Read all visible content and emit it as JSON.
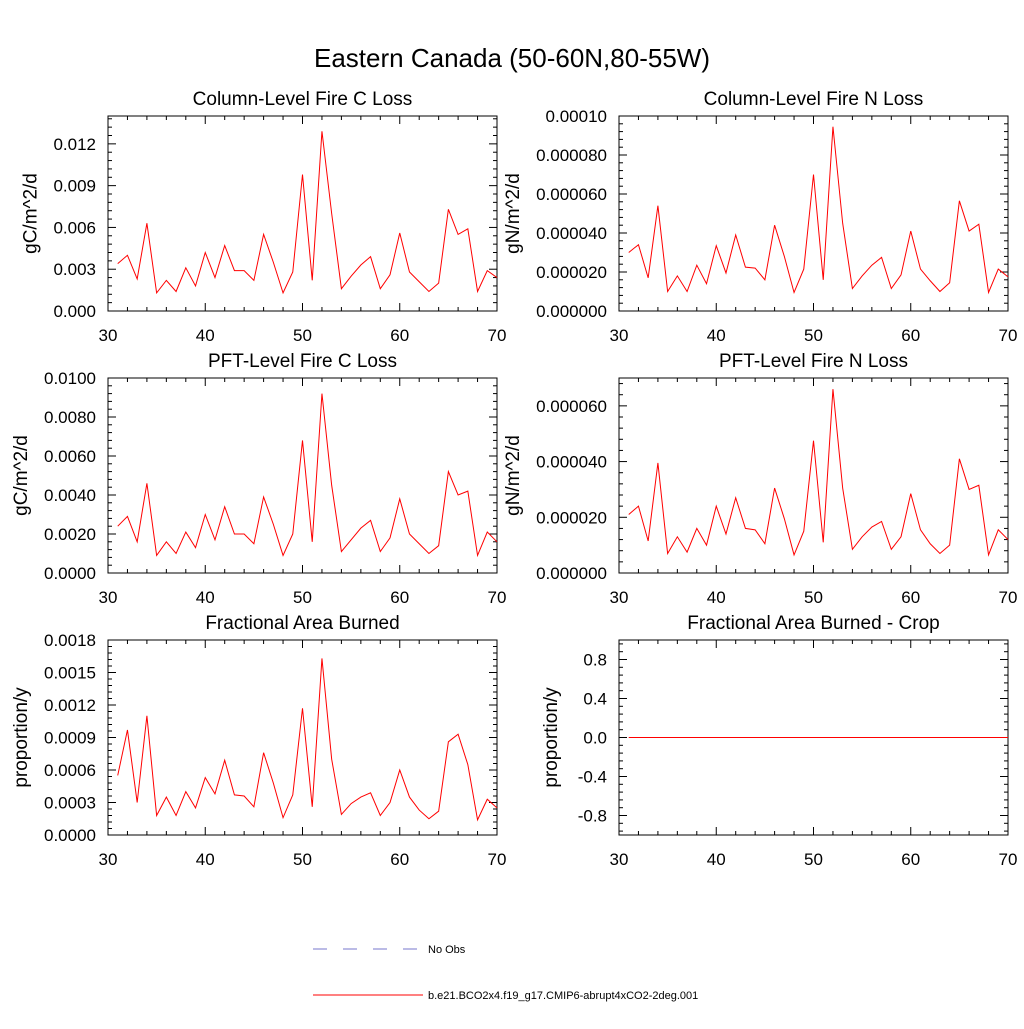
{
  "figure": {
    "title": "Eastern Canada (50-60N,80-55W)"
  },
  "legend": {
    "placement": "bottom-center",
    "items": [
      {
        "label": "No Obs",
        "color": "#7777cc",
        "style": "dashed"
      },
      {
        "label": "b.e21.BCO2x4.f19_g17.CMIP6-abrupt4xCO2-2deg.001",
        "color": "#ff0000",
        "style": "solid"
      }
    ]
  },
  "chart_data": [
    {
      "type": "line",
      "title": "Column-Level Fire C Loss",
      "xlabel": "",
      "ylabel": "gC/m^2/d",
      "xlim": [
        30,
        70
      ],
      "ylim": [
        0,
        0.014
      ],
      "xticks": [
        "30",
        "40",
        "50",
        "60",
        "70"
      ],
      "yticks": [
        "0.000",
        "0.003",
        "0.006",
        "0.009",
        "0.012"
      ],
      "series": [
        {
          "name": "b.e21.BCO2x4.f19_g17.CMIP6-abrupt4xCO2-2deg.001",
          "color": "#ff0000",
          "x": [
            31,
            32,
            33,
            34,
            35,
            36,
            37,
            38,
            39,
            40,
            41,
            42,
            43,
            44,
            45,
            46,
            47,
            48,
            49,
            50,
            51,
            52,
            53,
            54,
            55,
            56,
            57,
            58,
            59,
            60,
            61,
            62,
            63,
            64,
            65,
            66,
            67,
            68,
            69,
            70
          ],
          "values": [
            0.0034,
            0.004,
            0.0023,
            0.0063,
            0.0013,
            0.0022,
            0.0014,
            0.0031,
            0.0018,
            0.0042,
            0.0024,
            0.0047,
            0.0029,
            0.0029,
            0.0022,
            0.0055,
            0.0035,
            0.0013,
            0.0028,
            0.0098,
            0.0022,
            0.0129,
            0.007,
            0.0016,
            0.0025,
            0.0033,
            0.0039,
            0.0016,
            0.0026,
            0.0056,
            0.0028,
            0.0021,
            0.0014,
            0.002,
            0.0073,
            0.0055,
            0.0059,
            0.0014,
            0.0029,
            0.0024
          ]
        }
      ]
    },
    {
      "type": "line",
      "title": "Column-Level Fire N Loss",
      "xlabel": "",
      "ylabel": "gN/m^2/d",
      "xlim": [
        30,
        70
      ],
      "ylim": [
        0,
        0.0001
      ],
      "xticks": [
        "30",
        "40",
        "50",
        "60",
        "70"
      ],
      "yticks": [
        "0.000000",
        "0.000020",
        "0.000040",
        "0.000060",
        "0.000080",
        "0.00010"
      ],
      "series": [
        {
          "name": "b.e21.BCO2x4.f19_g17.CMIP6-abrupt4xCO2-2deg.001",
          "color": "#ff0000",
          "x": [
            31,
            32,
            33,
            34,
            35,
            36,
            37,
            38,
            39,
            40,
            41,
            42,
            43,
            44,
            45,
            46,
            47,
            48,
            49,
            50,
            51,
            52,
            53,
            54,
            55,
            56,
            57,
            58,
            59,
            60,
            61,
            62,
            63,
            64,
            65,
            66,
            67,
            68,
            69,
            70
          ],
          "values": [
            3e-05,
            3.4e-05,
            1.7e-05,
            5.4e-05,
            1e-05,
            1.8e-05,
            1e-05,
            2.35e-05,
            1.4e-05,
            3.35e-05,
            1.95e-05,
            3.9e-05,
            2.25e-05,
            2.2e-05,
            1.6e-05,
            4.4e-05,
            2.8e-05,
            9.5e-06,
            2.15e-05,
            7e-05,
            1.6e-05,
            9.45e-05,
            4.5e-05,
            1.15e-05,
            1.8e-05,
            2.35e-05,
            2.75e-05,
            1.15e-05,
            1.85e-05,
            4.1e-05,
            2.15e-05,
            1.55e-05,
            1e-05,
            1.45e-05,
            5.65e-05,
            4.1e-05,
            4.45e-05,
            9.5e-06,
            2.15e-05,
            1.75e-05
          ]
        }
      ]
    },
    {
      "type": "line",
      "title": "PFT-Level Fire C Loss",
      "xlabel": "",
      "ylabel": "gC/m^2/d",
      "xlim": [
        30,
        70
      ],
      "ylim": [
        0,
        0.01
      ],
      "xticks": [
        "30",
        "40",
        "50",
        "60",
        "70"
      ],
      "yticks": [
        "0.0000",
        "0.0020",
        "0.0040",
        "0.0060",
        "0.0080",
        "0.0100"
      ],
      "series": [
        {
          "name": "b.e21.BCO2x4.f19_g17.CMIP6-abrupt4xCO2-2deg.001",
          "color": "#ff0000",
          "x": [
            31,
            32,
            33,
            34,
            35,
            36,
            37,
            38,
            39,
            40,
            41,
            42,
            43,
            44,
            45,
            46,
            47,
            48,
            49,
            50,
            51,
            52,
            53,
            54,
            55,
            56,
            57,
            58,
            59,
            60,
            61,
            62,
            63,
            64,
            65,
            66,
            67,
            68,
            69,
            70
          ],
          "values": [
            0.0024,
            0.0029,
            0.0016,
            0.0046,
            0.0009,
            0.0016,
            0.001,
            0.0021,
            0.0013,
            0.003,
            0.0017,
            0.0034,
            0.002,
            0.002,
            0.0015,
            0.0039,
            0.0025,
            0.0009,
            0.002,
            0.0068,
            0.0016,
            0.0092,
            0.0045,
            0.0011,
            0.0017,
            0.0023,
            0.0027,
            0.0011,
            0.0018,
            0.0038,
            0.002,
            0.0015,
            0.001,
            0.0014,
            0.0052,
            0.004,
            0.0042,
            0.0009,
            0.0021,
            0.0016
          ]
        }
      ]
    },
    {
      "type": "line",
      "title": "PFT-Level Fire N Loss",
      "xlabel": "",
      "ylabel": "gN/m^2/d",
      "xlim": [
        30,
        70
      ],
      "ylim": [
        0,
        7e-05
      ],
      "xticks": [
        "30",
        "40",
        "50",
        "60",
        "70"
      ],
      "yticks": [
        "0.000000",
        "0.000020",
        "0.000040",
        "0.000060"
      ],
      "series": [
        {
          "name": "b.e21.BCO2x4.f19_g17.CMIP6-abrupt4xCO2-2deg.001",
          "color": "#ff0000",
          "x": [
            31,
            32,
            33,
            34,
            35,
            36,
            37,
            38,
            39,
            40,
            41,
            42,
            43,
            44,
            45,
            46,
            47,
            48,
            49,
            50,
            51,
            52,
            53,
            54,
            55,
            56,
            57,
            58,
            59,
            60,
            61,
            62,
            63,
            64,
            65,
            66,
            67,
            68,
            69,
            70
          ],
          "values": [
            2.1e-05,
            2.4e-05,
            1.15e-05,
            3.95e-05,
            7e-06,
            1.3e-05,
            7.5e-06,
            1.6e-05,
            1e-05,
            2.4e-05,
            1.4e-05,
            2.7e-05,
            1.6e-05,
            1.55e-05,
            1.05e-05,
            3.05e-05,
            1.95e-05,
            6.5e-06,
            1.5e-05,
            4.75e-05,
            1.1e-05,
            6.6e-05,
            3.05e-05,
            8.5e-06,
            1.3e-05,
            1.65e-05,
            1.85e-05,
            8.5e-06,
            1.3e-05,
            2.85e-05,
            1.55e-05,
            1.05e-05,
            7e-06,
            1e-05,
            4.1e-05,
            3e-05,
            3.15e-05,
            6.5e-06,
            1.55e-05,
            1.2e-05
          ]
        }
      ]
    },
    {
      "type": "line",
      "title": "Fractional Area Burned",
      "xlabel": "",
      "ylabel": "proportion/y",
      "xlim": [
        30,
        70
      ],
      "ylim": [
        0,
        0.0018
      ],
      "xticks": [
        "30",
        "40",
        "50",
        "60",
        "70"
      ],
      "yticks": [
        "0.0000",
        "0.0003",
        "0.0006",
        "0.0009",
        "0.0012",
        "0.0015",
        "0.0018"
      ],
      "series": [
        {
          "name": "b.e21.BCO2x4.f19_g17.CMIP6-abrupt4xCO2-2deg.001",
          "color": "#ff0000",
          "x": [
            31,
            32,
            33,
            34,
            35,
            36,
            37,
            38,
            39,
            40,
            41,
            42,
            43,
            44,
            45,
            46,
            47,
            48,
            49,
            50,
            51,
            52,
            53,
            54,
            55,
            56,
            57,
            58,
            59,
            60,
            61,
            62,
            63,
            64,
            65,
            66,
            67,
            68,
            69,
            70
          ],
          "values": [
            0.00055,
            0.00097,
            0.0003,
            0.0011,
            0.00018,
            0.00035,
            0.00018,
            0.0004,
            0.00025,
            0.00053,
            0.00038,
            0.00069,
            0.00037,
            0.00036,
            0.00026,
            0.00076,
            0.00048,
            0.00016,
            0.00037,
            0.00117,
            0.00026,
            0.00163,
            0.0007,
            0.00019,
            0.00029,
            0.00035,
            0.00039,
            0.00018,
            0.0003,
            0.0006,
            0.00035,
            0.00023,
            0.00015,
            0.00022,
            0.00086,
            0.00093,
            0.00065,
            0.00014,
            0.00033,
            0.00025
          ]
        }
      ]
    },
    {
      "type": "line",
      "title": "Fractional Area Burned - Crop",
      "xlabel": "",
      "ylabel": "proportion/y",
      "xlim": [
        30,
        70
      ],
      "ylim": [
        -1,
        1
      ],
      "xticks": [
        "30",
        "40",
        "50",
        "60",
        "70"
      ],
      "yticks": [
        "-0.8",
        "-0.4",
        "0.0",
        "0.4",
        "0.8"
      ],
      "series": [
        {
          "name": "b.e21.BCO2x4.f19_g17.CMIP6-abrupt4xCO2-2deg.001",
          "color": "#ff0000",
          "x": [
            31,
            32,
            33,
            34,
            35,
            36,
            37,
            38,
            39,
            40,
            41,
            42,
            43,
            44,
            45,
            46,
            47,
            48,
            49,
            50,
            51,
            52,
            53,
            54,
            55,
            56,
            57,
            58,
            59,
            60,
            61,
            62,
            63,
            64,
            65,
            66,
            67,
            68,
            69,
            70
          ],
          "values": [
            0,
            0,
            0,
            0,
            0,
            0,
            0,
            0,
            0,
            0,
            0,
            0,
            0,
            0,
            0,
            0,
            0,
            0,
            0,
            0,
            0,
            0,
            0,
            0,
            0,
            0,
            0,
            0,
            0,
            0,
            0,
            0,
            0,
            0,
            0,
            0,
            0,
            0,
            0,
            0
          ]
        }
      ]
    }
  ]
}
